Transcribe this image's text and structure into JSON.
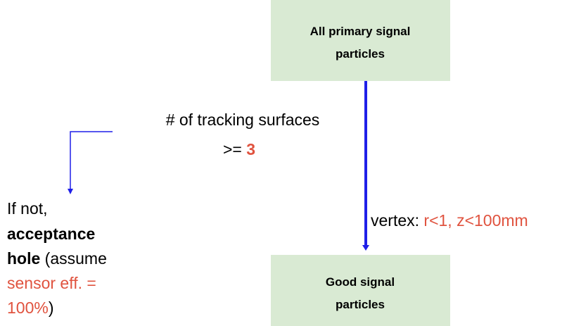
{
  "nodes": [
    {
      "label_lines": [
        "All primary signal",
        "particles"
      ]
    },
    {
      "label_lines": [
        "Good signal",
        "particles"
      ]
    }
  ],
  "edge": {
    "label": "vertex: ",
    "condition": "r<1, z<100mm"
  },
  "criterion": {
    "text": "# of tracking surfaces",
    "operator": ">= ",
    "threshold": "3"
  },
  "failure_note": {
    "lines": [
      [
        "If not,"
      ],
      [
        "acceptance"
      ],
      [
        "hole",
        " (assume"
      ],
      [
        "sensor eff. ="
      ],
      [
        "100%",
        ")"
      ]
    ]
  }
}
